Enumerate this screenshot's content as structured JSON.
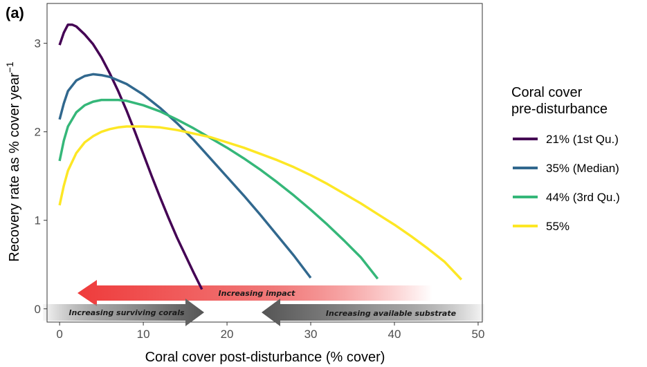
{
  "panel_label": "(a)",
  "colors": {
    "series": [
      "#440154",
      "#31688e",
      "#35b779",
      "#fde725"
    ],
    "impact_arrow": "#ef3b3b",
    "grey_arrow": "#555555"
  },
  "annotations": {
    "impact": "Increasing impact",
    "surviving": "Increasing surviving corals",
    "substrate": "Increasing available substrate"
  },
  "chart_data": {
    "type": "line",
    "title": "",
    "xlabel": "Coral cover post-disturbance (% cover)",
    "ylabel": "Recovery rate as % cover year",
    "ylabel_superscript": "−1",
    "xlim": [
      -1.5,
      50.5
    ],
    "ylim": [
      -0.15,
      3.45
    ],
    "x_ticks": [
      0,
      10,
      20,
      30,
      40,
      50
    ],
    "y_ticks": [
      0,
      1,
      2,
      3
    ],
    "grid": false,
    "legend": {
      "title_lines": [
        "Coral cover",
        "pre-disturbance"
      ],
      "position": "right"
    },
    "series": [
      {
        "name": "21% (1st Qu.)",
        "x": [
          0,
          0.5,
          1,
          1.5,
          2,
          3,
          4,
          5,
          6,
          7,
          8,
          9,
          10,
          11,
          12,
          13,
          14,
          15,
          16,
          17
        ],
        "y": [
          2.98,
          3.12,
          3.21,
          3.21,
          3.19,
          3.1,
          2.99,
          2.84,
          2.66,
          2.46,
          2.24,
          2.0,
          1.75,
          1.5,
          1.26,
          1.03,
          0.81,
          0.61,
          0.41,
          0.22
        ]
      },
      {
        "name": "35% (Median)",
        "x": [
          0,
          0.5,
          1,
          2,
          3,
          4,
          5,
          6,
          8,
          10,
          12,
          14,
          16,
          18,
          20,
          22,
          24,
          26,
          28,
          30
        ],
        "y": [
          2.14,
          2.32,
          2.46,
          2.58,
          2.63,
          2.65,
          2.64,
          2.62,
          2.54,
          2.42,
          2.27,
          2.1,
          1.91,
          1.7,
          1.49,
          1.28,
          1.06,
          0.83,
          0.6,
          0.35
        ]
      },
      {
        "name": "44% (3rd Qu.)",
        "x": [
          0,
          0.5,
          1,
          2,
          3,
          4,
          5,
          6,
          7,
          8,
          10,
          12,
          14,
          16,
          18,
          20,
          22,
          24,
          26,
          28,
          30,
          32,
          34,
          36,
          38
        ],
        "y": [
          1.67,
          1.9,
          2.06,
          2.22,
          2.3,
          2.34,
          2.36,
          2.36,
          2.36,
          2.35,
          2.3,
          2.23,
          2.14,
          2.04,
          1.93,
          1.82,
          1.7,
          1.57,
          1.43,
          1.28,
          1.12,
          0.95,
          0.77,
          0.58,
          0.34
        ]
      },
      {
        "name": "55%",
        "x": [
          0,
          0.5,
          1,
          2,
          3,
          4,
          5,
          6,
          7,
          8,
          9,
          10,
          12,
          14,
          16,
          18,
          20,
          22,
          24,
          26,
          28,
          30,
          32,
          34,
          36,
          38,
          40,
          42,
          44,
          46,
          48
        ],
        "y": [
          1.17,
          1.39,
          1.56,
          1.76,
          1.88,
          1.95,
          2.0,
          2.03,
          2.05,
          2.06,
          2.06,
          2.06,
          2.05,
          2.02,
          1.98,
          1.94,
          1.88,
          1.82,
          1.75,
          1.68,
          1.6,
          1.51,
          1.41,
          1.3,
          1.19,
          1.07,
          0.95,
          0.82,
          0.68,
          0.53,
          0.33
        ]
      }
    ]
  }
}
